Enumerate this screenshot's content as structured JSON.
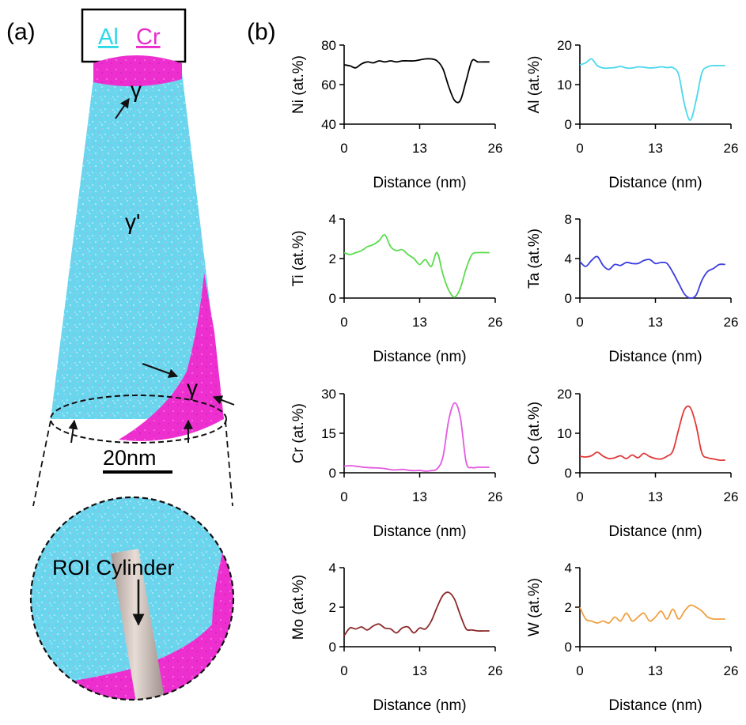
{
  "panel_a": {
    "label": "(a)",
    "legend": {
      "item1": "Al",
      "item1_color": "#2fd8e8",
      "item2": "Cr",
      "item2_color": "#e82ccb"
    },
    "phase_top": "γ",
    "phase_center": "γ'",
    "phase_right": "γ",
    "scale_bar_label": "20nm",
    "roi_label": "ROI Cylinder"
  },
  "panel_b": {
    "label": "(b)"
  },
  "chart_data": [
    {
      "type": "line",
      "element": "Ni",
      "ylabel": "Ni (at.%)",
      "xlabel": "Distance (nm)",
      "color": "#000000",
      "xlim": [
        0,
        26
      ],
      "xticks": [
        "0",
        "13",
        "26"
      ],
      "ylim": [
        40,
        80
      ],
      "yticks": [
        "40",
        "60",
        "80"
      ],
      "x": [
        0,
        1,
        2,
        3,
        4,
        5,
        6,
        7,
        8,
        9,
        10,
        11,
        12,
        13,
        14,
        15,
        16,
        17,
        18,
        19,
        20,
        21,
        22,
        23,
        24,
        25
      ],
      "y": [
        70,
        69.5,
        68.5,
        70.5,
        71.5,
        71,
        72,
        71.5,
        72,
        71.5,
        72,
        72,
        72,
        72.5,
        73,
        73,
        72,
        68,
        59,
        52,
        52,
        62,
        72,
        71.5,
        71.5,
        71.5
      ]
    },
    {
      "type": "line",
      "element": "Al",
      "ylabel": "Al (at.%)",
      "xlabel": "Distance (nm)",
      "color": "#4ad8ec",
      "xlim": [
        0,
        26
      ],
      "xticks": [
        "0",
        "13",
        "26"
      ],
      "ylim": [
        0,
        20
      ],
      "yticks": [
        "0",
        "10",
        "20"
      ],
      "x": [
        0,
        1,
        2,
        3,
        4,
        5,
        6,
        7,
        8,
        9,
        10,
        11,
        12,
        13,
        14,
        15,
        16,
        17,
        18,
        19,
        20,
        21,
        22,
        23,
        24,
        25
      ],
      "y": [
        15,
        15.5,
        16.5,
        14.8,
        14.2,
        14.2,
        14.3,
        14.6,
        14.2,
        14.2,
        14.5,
        14.4,
        14.2,
        14.3,
        14.5,
        14.3,
        14.3,
        12.5,
        5,
        1,
        6,
        13,
        14.5,
        14.8,
        14.8,
        14.8
      ]
    },
    {
      "type": "line",
      "element": "Ti",
      "ylabel": "Ti (at.%)",
      "xlabel": "Distance (nm)",
      "color": "#5adc4e",
      "xlim": [
        0,
        26
      ],
      "xticks": [
        "0",
        "13",
        "26"
      ],
      "ylim": [
        0,
        4
      ],
      "yticks": [
        "0",
        "2",
        "4"
      ],
      "x": [
        0,
        1,
        2,
        3,
        4,
        5,
        6,
        7,
        8,
        9,
        10,
        11,
        12,
        13,
        14,
        15,
        16,
        17,
        18,
        19,
        20,
        21,
        22,
        23,
        24,
        25
      ],
      "y": [
        2.3,
        2.2,
        2.3,
        2.4,
        2.6,
        2.7,
        2.9,
        3.2,
        2.6,
        2.4,
        2.45,
        2.2,
        2.0,
        1.7,
        1.95,
        1.6,
        2.3,
        1.2,
        0.4,
        0.05,
        0.5,
        1.5,
        2.2,
        2.3,
        2.3,
        2.3
      ]
    },
    {
      "type": "line",
      "element": "Ta",
      "ylabel": "Ta (at.%)",
      "xlabel": "Distance (nm)",
      "color": "#3a3ce0",
      "xlim": [
        0,
        26
      ],
      "xticks": [
        "0",
        "13",
        "26"
      ],
      "ylim": [
        0,
        8
      ],
      "yticks": [
        "0",
        "4",
        "8"
      ],
      "x": [
        0,
        1,
        2,
        3,
        4,
        5,
        6,
        7,
        8,
        9,
        10,
        11,
        12,
        13,
        14,
        15,
        16,
        17,
        18,
        19,
        20,
        21,
        22,
        23,
        24,
        25
      ],
      "y": [
        3.7,
        3.2,
        3.8,
        4.2,
        3.3,
        2.9,
        3.4,
        3.3,
        3.6,
        3.5,
        3.5,
        3.8,
        3.9,
        3.5,
        3.6,
        3.5,
        2.6,
        1.5,
        0.4,
        0,
        0.3,
        1.8,
        2.7,
        3.0,
        3.4,
        3.4
      ]
    },
    {
      "type": "line",
      "element": "Cr",
      "ylabel": "Cr (at.%)",
      "xlabel": "Distance (nm)",
      "color": "#e45ae0",
      "xlim": [
        0,
        26
      ],
      "xticks": [
        "0",
        "13",
        "26"
      ],
      "ylim": [
        0,
        30
      ],
      "yticks": [
        "0",
        "15",
        "30"
      ],
      "x": [
        0,
        1,
        2,
        3,
        4,
        5,
        6,
        7,
        8,
        9,
        10,
        11,
        12,
        13,
        14,
        15,
        16,
        17,
        18,
        19,
        20,
        21,
        22,
        23,
        24,
        25
      ],
      "y": [
        2.5,
        2.7,
        2.5,
        2.2,
        2.0,
        1.9,
        1.8,
        1.6,
        1.2,
        1.1,
        1.3,
        1.0,
        0.8,
        0.9,
        0.6,
        0.8,
        1.5,
        6,
        20,
        26.5,
        21,
        4,
        2.0,
        2.1,
        2.1,
        2.1
      ]
    },
    {
      "type": "line",
      "element": "Co",
      "ylabel": "Co (at.%)",
      "xlabel": "Distance (nm)",
      "color": "#e03838",
      "xlim": [
        0,
        26
      ],
      "xticks": [
        "0",
        "13",
        "26"
      ],
      "ylim": [
        0,
        20
      ],
      "yticks": [
        "0",
        "10",
        "20"
      ],
      "x": [
        0,
        1,
        2,
        3,
        4,
        5,
        6,
        7,
        8,
        9,
        10,
        11,
        12,
        13,
        14,
        15,
        16,
        17,
        18,
        19,
        20,
        21,
        22,
        23,
        24,
        25
      ],
      "y": [
        4.2,
        4.0,
        4.3,
        5.2,
        4.2,
        3.6,
        3.8,
        4.3,
        3.6,
        4.5,
        3.8,
        4.9,
        4.1,
        3.6,
        3.5,
        4.2,
        5.5,
        11,
        16,
        16.5,
        12,
        5,
        3.8,
        3.5,
        3.2,
        3.2
      ]
    },
    {
      "type": "line",
      "element": "Mo",
      "ylabel": "Mo (at.%)",
      "xlabel": "Distance (nm)",
      "color": "#8c2a2a",
      "xlim": [
        0,
        26
      ],
      "xticks": [
        "0",
        "13",
        "26"
      ],
      "ylim": [
        0,
        4
      ],
      "yticks": [
        "0",
        "2",
        "4"
      ],
      "x": [
        0,
        1,
        2,
        3,
        4,
        5,
        6,
        7,
        8,
        9,
        10,
        11,
        12,
        13,
        14,
        15,
        16,
        17,
        18,
        19,
        20,
        21,
        22,
        23,
        24,
        25
      ],
      "y": [
        0.55,
        0.95,
        0.9,
        1.0,
        0.85,
        1.05,
        1.15,
        0.95,
        0.9,
        0.7,
        0.95,
        1.0,
        0.7,
        0.95,
        0.9,
        1.3,
        2.0,
        2.6,
        2.75,
        2.4,
        1.6,
        0.9,
        0.85,
        0.8,
        0.8,
        0.8
      ]
    },
    {
      "type": "line",
      "element": "W",
      "ylabel": "W (at.%)",
      "xlabel": "Distance (nm)",
      "color": "#f0a040",
      "xlim": [
        0,
        26
      ],
      "xticks": [
        "0",
        "13",
        "26"
      ],
      "ylim": [
        0,
        4
      ],
      "yticks": [
        "0",
        "2",
        "4"
      ],
      "x": [
        0,
        1,
        2,
        3,
        4,
        5,
        6,
        7,
        8,
        9,
        10,
        11,
        12,
        13,
        14,
        15,
        16,
        17,
        18,
        19,
        20,
        21,
        22,
        23,
        24,
        25
      ],
      "y": [
        2.0,
        1.4,
        1.3,
        1.2,
        1.3,
        1.2,
        1.5,
        1.3,
        1.7,
        1.3,
        1.5,
        1.7,
        1.3,
        1.5,
        1.8,
        1.4,
        1.9,
        1.4,
        1.8,
        2.1,
        2.0,
        1.8,
        1.5,
        1.4,
        1.4,
        1.4
      ]
    }
  ]
}
